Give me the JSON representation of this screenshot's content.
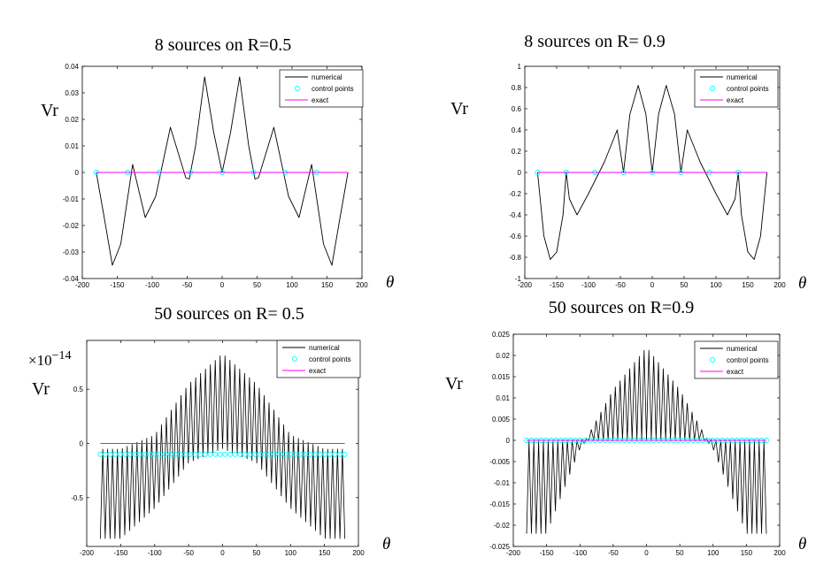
{
  "chart_data": [
    {
      "type": "line",
      "title": "8 sources on R=0.5",
      "ylabel": "Vr",
      "xlabel": "θ",
      "xlim": [
        -200,
        200
      ],
      "ylim": [
        -0.04,
        0.04
      ],
      "xticks": [
        -200,
        -150,
        -100,
        -50,
        0,
        50,
        100,
        150,
        200
      ],
      "xtick_labels": [
        "-200",
        "-150",
        "-100",
        "-50",
        "0",
        "50",
        "100",
        "150",
        "200"
      ],
      "yticks": [
        -0.04,
        -0.03,
        -0.02,
        -0.01,
        0,
        0.01,
        0.02,
        0.03,
        0.04
      ],
      "ytick_labels": [
        "-0.04",
        "-0.03",
        "-0.02",
        "-0.01",
        "0",
        "0.01",
        "0.02",
        "0.03",
        "0.04"
      ],
      "legend": {
        "position": "top-right",
        "entries": [
          "numerical",
          "control points",
          "exact"
        ]
      },
      "series": [
        {
          "name": "numerical",
          "style": "line",
          "color": "#000000",
          "x": [
            -180,
            -168,
            -157,
            -145,
            -128,
            -110,
            -95,
            -74,
            -52,
            -47,
            -38,
            -25,
            -12,
            0,
            12,
            25,
            38,
            47,
            52,
            74,
            95,
            110,
            128,
            145,
            157,
            168,
            180
          ],
          "y": [
            0,
            -0.018,
            -0.035,
            -0.027,
            0.003,
            -0.017,
            -0.009,
            0.017,
            -0.002,
            -0.0025,
            0.01,
            0.036,
            0.015,
            0,
            0.015,
            0.036,
            0.01,
            -0.0025,
            -0.002,
            0.017,
            -0.009,
            -0.017,
            0.003,
            -0.027,
            -0.035,
            -0.018,
            0
          ]
        },
        {
          "name": "control points",
          "style": "marker",
          "color": "#00ffff",
          "x": [
            -135,
            -90,
            -45,
            0,
            45,
            90,
            135,
            -180
          ],
          "y": [
            0,
            0,
            0,
            0,
            0,
            0,
            0,
            0
          ]
        },
        {
          "name": "exact",
          "style": "line",
          "color": "#ff00ff",
          "x": [
            -180,
            180
          ],
          "y": [
            0,
            0
          ]
        }
      ]
    },
    {
      "type": "line",
      "title": "8 sources on R= 0.9",
      "ylabel": "Vr",
      "xlabel": "θ",
      "xlim": [
        -200,
        200
      ],
      "ylim": [
        -1,
        1
      ],
      "xticks": [
        -200,
        -150,
        -100,
        -50,
        0,
        50,
        100,
        150,
        200
      ],
      "xtick_labels": [
        "-200",
        "-150",
        "-100",
        "-50",
        "0",
        "50",
        "100",
        "150",
        "200"
      ],
      "yticks": [
        -1,
        -0.8,
        -0.6,
        -0.4,
        -0.2,
        0,
        0.2,
        0.4,
        0.6,
        0.8,
        1
      ],
      "ytick_labels": [
        "-1",
        "-0.8",
        "-0.6",
        "-0.4",
        "-0.2",
        "0",
        "0.2",
        "0.4",
        "0.6",
        "0.8",
        "1"
      ],
      "legend": {
        "position": "top-right",
        "entries": [
          "numerical",
          "control points",
          "exact"
        ]
      },
      "series": [
        {
          "name": "numerical",
          "style": "line",
          "color": "#000000",
          "x": [
            -180,
            -170,
            -160,
            -150,
            -140,
            -135,
            -130,
            -118,
            -100,
            -75,
            -55,
            -45,
            -35,
            -22,
            -10,
            0,
            10,
            22,
            35,
            45,
            55,
            75,
            100,
            118,
            130,
            135,
            140,
            150,
            160,
            170,
            180
          ],
          "y": [
            0,
            -0.6,
            -0.82,
            -0.75,
            -0.4,
            0,
            -0.25,
            -0.4,
            -0.2,
            0.1,
            0.4,
            0,
            0.55,
            0.82,
            0.55,
            0,
            0.55,
            0.82,
            0.55,
            0,
            0.4,
            0.1,
            -0.2,
            -0.4,
            -0.25,
            0,
            -0.4,
            -0.75,
            -0.82,
            -0.6,
            0
          ]
        },
        {
          "name": "control points",
          "style": "marker",
          "color": "#00ffff",
          "x": [
            -180,
            -135,
            -90,
            -45,
            0,
            45,
            90,
            135
          ],
          "y": [
            0,
            0,
            0,
            0,
            0,
            0,
            0,
            0
          ]
        },
        {
          "name": "exact",
          "style": "line",
          "color": "#ff00ff",
          "x": [
            -180,
            180
          ],
          "y": [
            0,
            0
          ]
        }
      ]
    },
    {
      "type": "line",
      "title": "50 sources on R= 0.5",
      "ylabel": "Vr",
      "multiplier": "×10",
      "multiplier_exp": "−14",
      "xlabel": "θ",
      "xlim": [
        -200,
        200
      ],
      "ylim": [
        -0.95,
        0.95
      ],
      "xticks": [
        -200,
        -150,
        -100,
        -50,
        0,
        50,
        100,
        150,
        200
      ],
      "xtick_labels": [
        "-200",
        "-150",
        "-100",
        "-50",
        "0",
        "50",
        "100",
        "150",
        "200"
      ],
      "yticks": [
        -0.5,
        0,
        0.5
      ],
      "ytick_labels": [
        "-0.5",
        "0",
        "0.5"
      ],
      "legend": {
        "position": "top-right",
        "entries": [
          "numerical",
          "control points",
          "exact"
        ]
      },
      "series": [
        {
          "name": "numerical",
          "style": "oscillation",
          "color": "#000000",
          "n_cycles": 50,
          "x_range": [
            -180,
            180
          ],
          "upper_envelope": {
            "x": [
              -180,
              -150,
              -100,
              -50,
              0,
              50,
              100,
              150,
              180
            ],
            "y": [
              -0.05,
              -0.05,
              0.08,
              0.55,
              0.83,
              0.55,
              0.08,
              -0.05,
              -0.05
            ]
          },
          "lower_envelope": {
            "x": [
              -180,
              -150,
              -100,
              -50,
              0,
              50,
              100,
              150,
              180
            ],
            "y": [
              -0.88,
              -0.88,
              -0.6,
              -0.18,
              -0.05,
              -0.18,
              -0.6,
              -0.88,
              -0.88
            ]
          }
        },
        {
          "name": "control points",
          "style": "marker",
          "color": "#00ffff",
          "x_range": [
            -180,
            180
          ],
          "count": 50,
          "y_value": -0.1
        },
        {
          "name": "exact",
          "style": "line",
          "color": "#ff00ff",
          "x": [
            -180,
            180
          ],
          "y": [
            0,
            0
          ]
        }
      ]
    },
    {
      "type": "line",
      "title": "50 sources on R=0.9",
      "ylabel": "Vr",
      "xlabel": "θ",
      "xlim": [
        -200,
        200
      ],
      "ylim": [
        -0.025,
        0.025
      ],
      "xticks": [
        -200,
        -150,
        -100,
        -50,
        0,
        50,
        100,
        150,
        200
      ],
      "xtick_labels": [
        "-200",
        "-150",
        "-100",
        "-50",
        "0",
        "50",
        "100",
        "150",
        "200"
      ],
      "yticks": [
        -0.025,
        -0.02,
        -0.015,
        -0.01,
        -0.005,
        0,
        0.005,
        0.01,
        0.015,
        0.02,
        0.025
      ],
      "ytick_labels": [
        "-0.025",
        "-0.02",
        "-0.015",
        "-0.01",
        "-0.005",
        "0",
        "0.005",
        "0.01",
        "0.015",
        "0.02",
        "0.025"
      ],
      "legend": {
        "position": "top-right",
        "entries": [
          "numerical",
          "control points",
          "exact"
        ]
      },
      "series": [
        {
          "name": "numerical",
          "style": "oscillation",
          "color": "#000000",
          "n_cycles": 50,
          "x_range": [
            -180,
            180
          ],
          "upper_envelope": {
            "x": [
              -180,
              -100,
              -90,
              -50,
              0,
              50,
              90,
              100,
              180
            ],
            "y": [
              0,
              0,
              0.0005,
              0.012,
              0.022,
              0.012,
              0.0005,
              0,
              0
            ]
          },
          "lower_envelope": {
            "x": [
              -180,
              -150,
              -100,
              -90,
              0,
              90,
              100,
              150,
              180
            ],
            "y": [
              -0.022,
              -0.022,
              -0.002,
              0,
              0,
              0,
              -0.002,
              -0.022,
              -0.022
            ]
          }
        },
        {
          "name": "control points",
          "style": "marker",
          "color": "#00ffff",
          "x_range": [
            -180,
            180
          ],
          "count": 50,
          "y_value": 0
        },
        {
          "name": "exact",
          "style": "line",
          "color": "#ff00ff",
          "x": [
            -180,
            180
          ],
          "y": [
            0,
            0
          ]
        }
      ]
    }
  ]
}
